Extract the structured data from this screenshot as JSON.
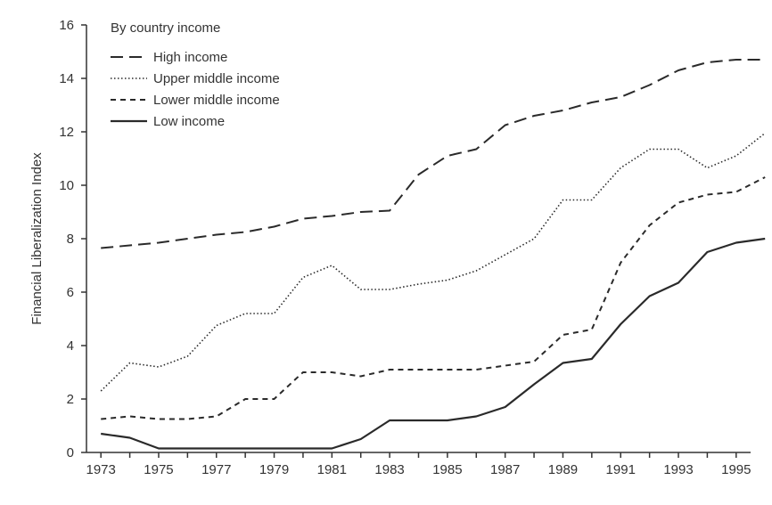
{
  "chart_data": {
    "type": "line",
    "title": "",
    "xlabel": "",
    "ylabel": "Financial Liberalization Index",
    "legend_title": "By country income",
    "legend_position": "top-left",
    "grid": false,
    "xlim": [
      1972.5,
      1995.5
    ],
    "ylim": [
      0,
      16
    ],
    "x": [
      1973,
      1974,
      1975,
      1976,
      1977,
      1978,
      1979,
      1980,
      1981,
      1982,
      1983,
      1984,
      1985,
      1986,
      1987,
      1988,
      1989,
      1990,
      1991,
      1992,
      1993,
      1994,
      1995,
      1996
    ],
    "x_tick_labels": [
      "1973",
      "1975",
      "1977",
      "1979",
      "1981",
      "1983",
      "1985",
      "1987",
      "1989",
      "1991",
      "1993",
      "1995"
    ],
    "y_tick_labels": [
      "0",
      "2",
      "4",
      "6",
      "8",
      "10",
      "12",
      "14",
      "16"
    ],
    "series": [
      {
        "name": "High income",
        "style": "long-dash",
        "values": [
          7.65,
          7.75,
          7.85,
          8.0,
          8.15,
          8.25,
          8.45,
          8.75,
          8.85,
          9.0,
          9.05,
          10.4,
          11.1,
          11.35,
          12.25,
          12.6,
          12.8,
          13.1,
          13.3,
          13.75,
          14.3,
          14.6,
          14.7,
          14.7
        ]
      },
      {
        "name": "Upper middle income",
        "style": "dotted",
        "values": [
          2.3,
          3.35,
          3.2,
          3.6,
          4.75,
          5.2,
          5.2,
          6.55,
          7.0,
          6.1,
          6.1,
          6.3,
          6.45,
          6.8,
          7.4,
          8.0,
          9.45,
          9.45,
          10.65,
          11.35,
          11.35,
          10.65,
          11.1,
          11.95
        ]
      },
      {
        "name": "Lower middle income",
        "style": "short-dash",
        "values": [
          1.25,
          1.35,
          1.25,
          1.25,
          1.35,
          2.0,
          2.0,
          3.0,
          3.0,
          2.85,
          3.1,
          3.1,
          3.1,
          3.1,
          3.25,
          3.4,
          4.4,
          4.6,
          7.1,
          8.5,
          9.35,
          9.65,
          9.75,
          10.3
        ]
      },
      {
        "name": "Low income",
        "style": "solid",
        "values": [
          0.7,
          0.55,
          0.15,
          0.15,
          0.15,
          0.15,
          0.15,
          0.15,
          0.15,
          0.5,
          1.2,
          1.2,
          1.2,
          1.35,
          1.7,
          2.55,
          3.35,
          3.5,
          4.8,
          5.85,
          6.35,
          7.5,
          7.85,
          8.0
        ]
      }
    ]
  }
}
